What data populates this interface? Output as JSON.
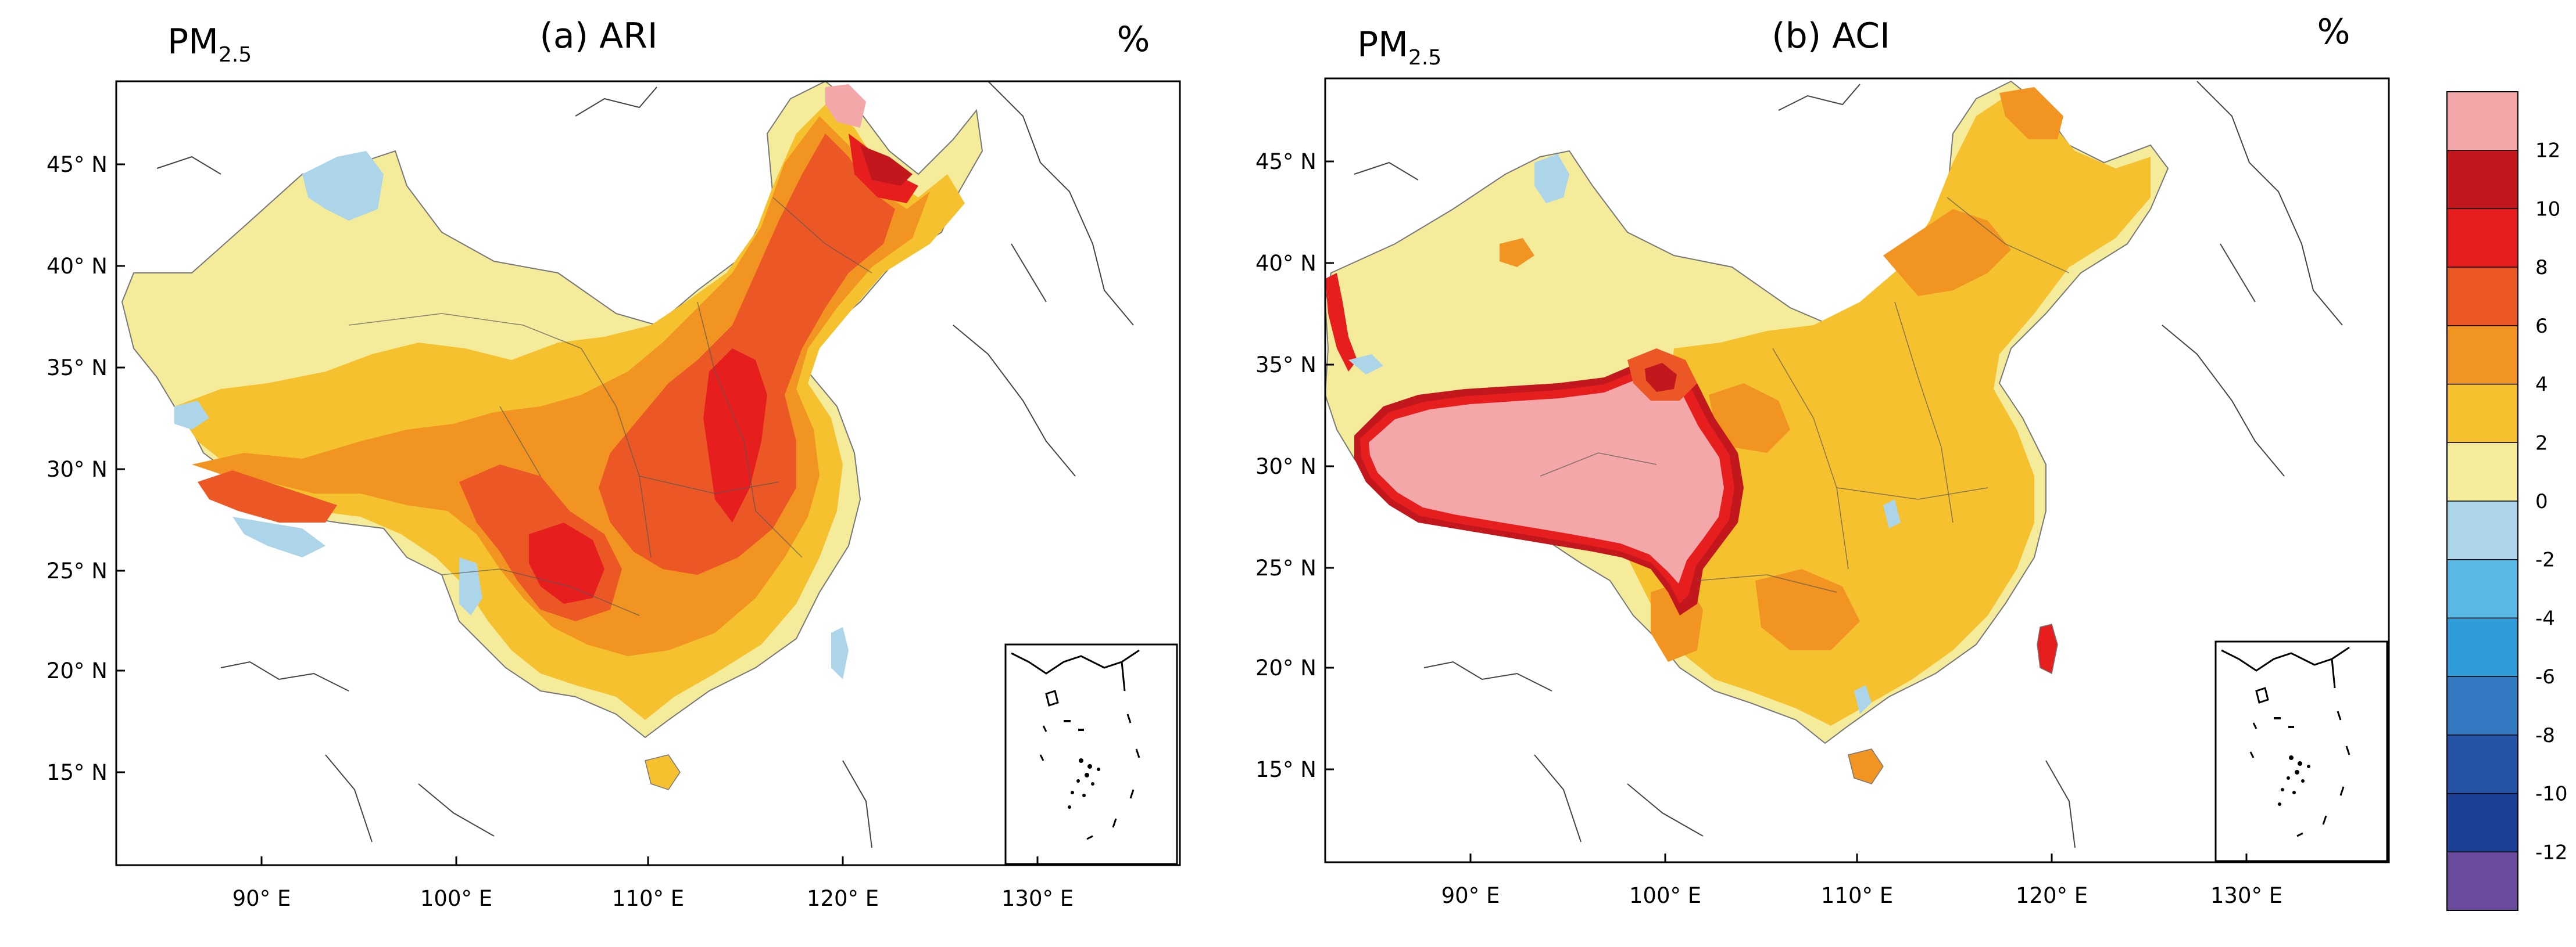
{
  "panel_a": {
    "variable_main": "PM",
    "variable_sub": "2.5",
    "title": "(a) ARI",
    "unit": "%",
    "lat_labels": [
      "45° N",
      "40° N",
      "35° N",
      "30° N",
      "25° N",
      "20° N",
      "15° N"
    ],
    "lon_labels": [
      "90° E",
      "100° E",
      "110° E",
      "120° E",
      "130° E"
    ]
  },
  "panel_b": {
    "variable_main": "PM",
    "variable_sub": "2.5",
    "title": "(b) ACI",
    "unit": "%",
    "lat_labels": [
      "45° N",
      "40° N",
      "35° N",
      "30° N",
      "25° N",
      "20° N",
      "15° N"
    ],
    "lon_labels": [
      "90° E",
      "100° E",
      "110° E",
      "120° E",
      "130° E"
    ]
  },
  "colorbar": {
    "tick_labels": [
      "12",
      "10",
      "8",
      "6",
      "4",
      "2",
      "0",
      "-2",
      "-4",
      "-6",
      "-8",
      "-10",
      "-12"
    ],
    "colors_top_to_bottom": [
      "#f3a7a9",
      "#c1171d",
      "#e61f1e",
      "#ec5825",
      "#f29421",
      "#f5c12f",
      "#f4ec9a",
      "#add5ea",
      "#5ab8e4",
      "#2d9cd9",
      "#347ac2",
      "#2553a6",
      "#1c3f96",
      "#6b4b9e"
    ]
  }
}
